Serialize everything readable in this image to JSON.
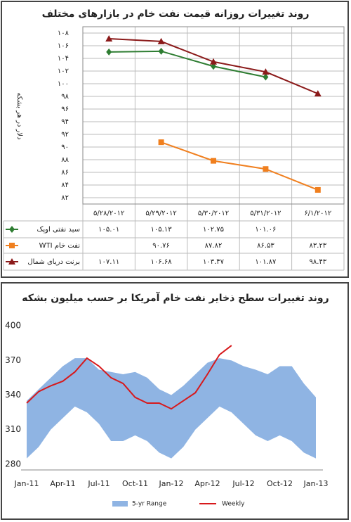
{
  "chart_data": [
    {
      "type": "line",
      "title": "روند تغییرات روزانه قیمت نفت خام در بازارهای مختلف",
      "y_label": "دلار در هر بشکه",
      "categories": [
        "۵/۲۸/۲۰۱۲",
        "۵/۲۹/۲۰۱۲",
        "۵/۳۰/۲۰۱۲",
        "۵/۳۱/۲۰۱۲",
        "۶/۱/۲۰۱۲"
      ],
      "ylim": [
        81,
        109
      ],
      "yticks": [
        {
          "value": 82,
          "label": "۸۲"
        },
        {
          "value": 84,
          "label": "۸۴"
        },
        {
          "value": 86,
          "label": "۸۶"
        },
        {
          "value": 88,
          "label": "۸۸"
        },
        {
          "value": 90,
          "label": "۹۰"
        },
        {
          "value": 92,
          "label": "۹۲"
        },
        {
          "value": 94,
          "label": "۹۴"
        },
        {
          "value": 96,
          "label": "۹۶"
        },
        {
          "value": 98,
          "label": "۹۸"
        },
        {
          "value": 100,
          "label": "۱۰۰"
        },
        {
          "value": 102,
          "label": "۱۰۲"
        },
        {
          "value": 104,
          "label": "۱۰۴"
        },
        {
          "value": 106,
          "label": "۱۰۶"
        },
        {
          "value": 108,
          "label": "۱۰۸"
        }
      ],
      "grid": true,
      "series": [
        {
          "name": "سبد نفتی اوپک",
          "color": "#2e7d32",
          "marker": "diamond",
          "values": [
            105.01,
            105.13,
            102.75,
            101.06,
            null
          ],
          "value_labels": [
            "۱۰۵.۰۱",
            "۱۰۵.۱۳",
            "۱۰۲.۷۵",
            "۱۰۱.۰۶",
            null
          ]
        },
        {
          "name": "WTI نفت خام",
          "color": "#f07f1e",
          "marker": "square",
          "values": [
            null,
            90.76,
            87.82,
            86.53,
            83.23
          ],
          "value_labels": [
            null,
            "۹۰.۷۶",
            "۸۷.۸۲",
            "۸۶.۵۳",
            "۸۳.۲۳"
          ]
        },
        {
          "name": "برنت دریای شمال",
          "color": "#8b1a1a",
          "marker": "triangle",
          "values": [
            107.11,
            106.68,
            103.47,
            101.87,
            98.43
          ],
          "value_labels": [
            "۱۰۷.۱۱",
            "۱۰۶.۶۸",
            "۱۰۳.۴۷",
            "۱۰۱.۸۷",
            "۹۸.۴۳"
          ]
        }
      ]
    },
    {
      "type": "area",
      "title": "روند تغییرات سطح ذخایر نفت خام آمریکا بر حسب میلیون بشکه",
      "categories": [
        "Jan-11",
        null,
        null,
        "Apr-11",
        null,
        null,
        "Jul-11",
        null,
        null,
        "Oct-11",
        null,
        null,
        "Jan-12",
        null,
        null,
        "Apr-12",
        null,
        null,
        "Jul-12",
        null,
        null,
        "Oct-12",
        null,
        null,
        "Jan-13"
      ],
      "ylim": [
        275,
        405
      ],
      "yticks": [
        280,
        310,
        340,
        370,
        400
      ],
      "series": [
        {
          "name": "5-yr Range",
          "color": "#8fb4e3",
          "high": [
            335,
            345,
            355,
            365,
            372,
            372,
            362,
            360,
            358,
            360,
            355,
            345,
            340,
            348,
            358,
            368,
            372,
            370,
            365,
            362,
            358,
            365,
            365,
            350,
            338
          ],
          "low": [
            285,
            295,
            310,
            320,
            330,
            325,
            315,
            300,
            300,
            305,
            300,
            290,
            285,
            295,
            310,
            320,
            330,
            325,
            315,
            305,
            300,
            305,
            300,
            290,
            285
          ]
        },
        {
          "name": "Weekly",
          "color": "#d7191c",
          "values": [
            333,
            343,
            348,
            352,
            360,
            372,
            365,
            355,
            350,
            338,
            333,
            333,
            328,
            335,
            342,
            358,
            375,
            383,
            null,
            null,
            null,
            null,
            null,
            null,
            null
          ]
        }
      ]
    }
  ]
}
